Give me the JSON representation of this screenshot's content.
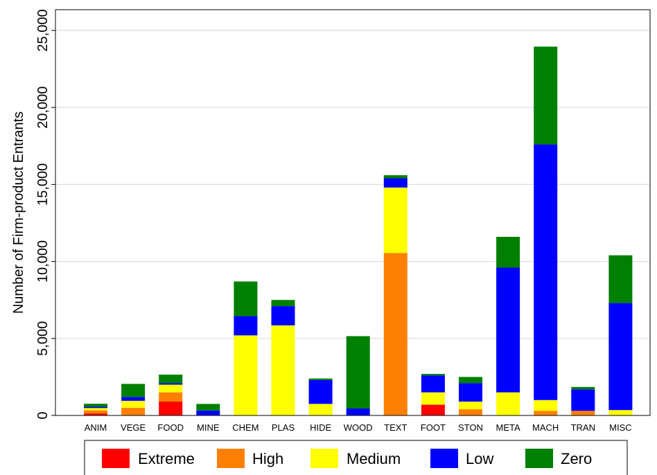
{
  "chart_data": {
    "type": "bar",
    "stacked": true,
    "ylabel": "Number of Firm-product Entrants",
    "xlabel": "",
    "ylim": [
      0,
      25000
    ],
    "yticks": [
      0,
      5000,
      10000,
      15000,
      20000,
      25000
    ],
    "ytick_labels": [
      "0",
      "5,000",
      "10,000",
      "15,000",
      "20,000",
      "25,000"
    ],
    "grid": true,
    "legend_position": "bottom",
    "categories": [
      "ANIM",
      "VEGE",
      "FOOD",
      "MINE",
      "CHEM",
      "PLAS",
      "HIDE",
      "WOOD",
      "TEXT",
      "FOOT",
      "STON",
      "META",
      "MACH",
      "TRAN",
      "MISC"
    ],
    "series": [
      {
        "name": "Extreme",
        "color": "#ff0000",
        "values": [
          130,
          0,
          900,
          0,
          0,
          0,
          0,
          0,
          0,
          700,
          0,
          0,
          0,
          0,
          0
        ]
      },
      {
        "name": "High",
        "color": "#ff8000",
        "values": [
          200,
          500,
          600,
          0,
          0,
          0,
          0,
          0,
          10550,
          0,
          400,
          0,
          300,
          300,
          0
        ]
      },
      {
        "name": "Medium",
        "color": "#ffff00",
        "values": [
          150,
          450,
          500,
          0,
          5200,
          5850,
          750,
          0,
          4250,
          800,
          500,
          1500,
          700,
          0,
          350
        ]
      },
      {
        "name": "Low",
        "color": "#0000ff",
        "values": [
          80,
          250,
          100,
          320,
          1250,
          1250,
          1550,
          450,
          600,
          1100,
          1200,
          8100,
          16600,
          1400,
          6950
        ]
      },
      {
        "name": "Zero",
        "color": "#008000",
        "values": [
          200,
          850,
          550,
          430,
          2250,
          400,
          100,
          4700,
          200,
          100,
          400,
          2000,
          6350,
          150,
          3100
        ]
      }
    ]
  }
}
